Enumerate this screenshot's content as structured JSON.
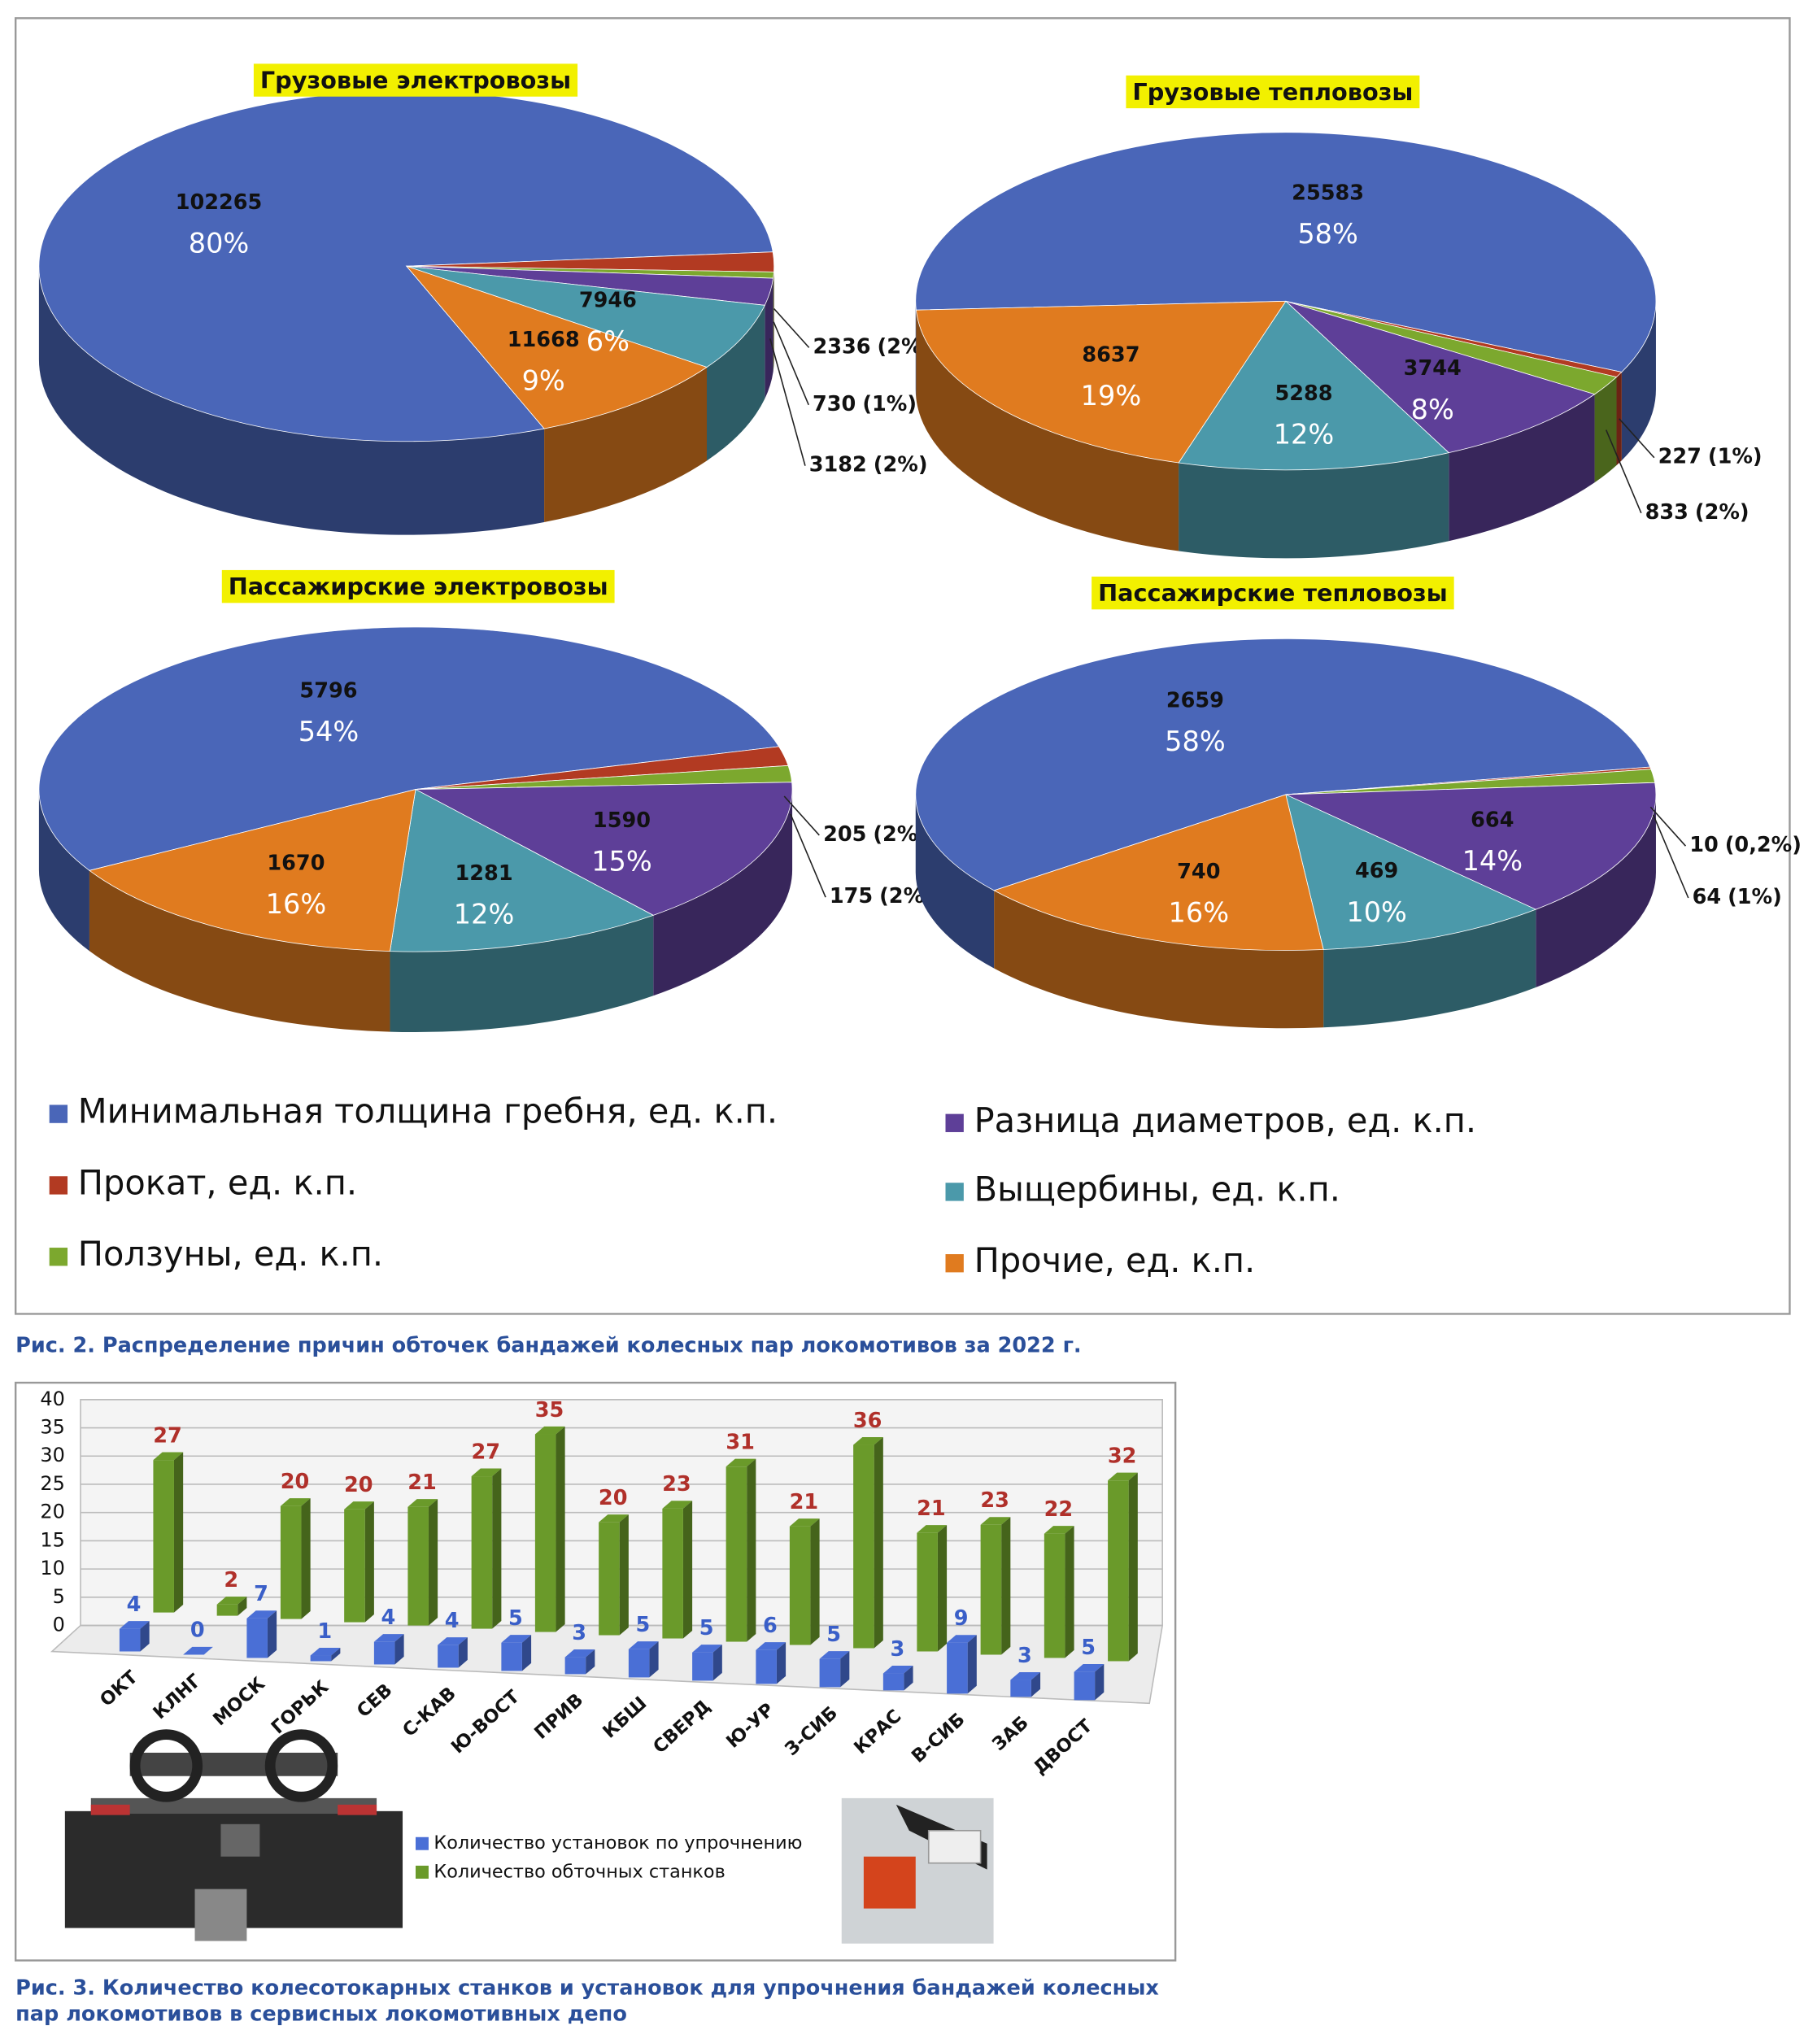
{
  "chart_data": [
    {
      "type": "pie",
      "title": "Грузовые электровозы",
      "values": [
        102265,
        2336,
        730,
        3182,
        7946,
        11668
      ],
      "percents": [
        80,
        2,
        1,
        2,
        6,
        9
      ],
      "percent_labels": [
        "80%",
        "(2%)",
        "(1%)",
        "(2%)",
        "6%",
        "9%"
      ]
    },
    {
      "type": "pie",
      "title": "Грузовые тепловозы",
      "values": [
        25583,
        227,
        833,
        3744,
        5288,
        8637
      ],
      "percents": [
        58,
        1,
        2,
        8,
        12,
        19
      ],
      "percent_labels": [
        "58%",
        "(1%)",
        "(2%)",
        "8%",
        "12%",
        "19%"
      ]
    },
    {
      "type": "pie",
      "title": "Пассажирские электровозы",
      "values": [
        5796,
        205,
        175,
        1590,
        1281,
        1670
      ],
      "percents": [
        54,
        2,
        2,
        15,
        12,
        16
      ],
      "percent_labels": [
        "54%",
        "(2%)",
        "(2%)",
        "15%",
        "12%",
        "16%"
      ]
    },
    {
      "type": "pie",
      "title": "Пассажирские тепловозы",
      "values": [
        2659,
        10,
        64,
        664,
        469,
        740
      ],
      "percents": [
        58,
        0.2,
        1,
        14,
        10,
        16
      ],
      "percent_labels": [
        "58%",
        "(0,2%)",
        "(1%)",
        "14%",
        "10%",
        "16%"
      ]
    },
    {
      "type": "bar3d",
      "categories": [
        "ОКТ",
        "КЛНГ",
        "МОСК",
        "ГОРЬК",
        "СЕВ",
        "С-КАВ",
        "Ю-ВОСТ",
        "ПРИВ",
        "КБШ",
        "СВЕРД",
        "Ю-УР",
        "З-СИБ",
        "КРАС",
        "В-СИБ",
        "ЗАБ",
        "ДВОСТ"
      ],
      "series": [
        {
          "name": "Количество установок по упрочнению",
          "color": "#4a6fd6",
          "label_color": "#3a5fc8",
          "values": [
            4,
            0,
            7,
            1,
            4,
            4,
            5,
            3,
            5,
            5,
            6,
            5,
            3,
            9,
            3,
            5
          ]
        },
        {
          "name": "Количество обточных станков",
          "color": "#6a9a2a",
          "label_color": "#b0302a",
          "values": [
            27,
            2,
            20,
            20,
            21,
            27,
            35,
            20,
            23,
            31,
            21,
            36,
            21,
            23,
            22,
            32
          ]
        }
      ],
      "ylim": [
        0,
        40
      ],
      "yticks": [
        0,
        5,
        10,
        15,
        20,
        25,
        30,
        35,
        40
      ],
      "grid": true
    }
  ],
  "pie_legend": {
    "labels": [
      "Минимальная толщина гребня, ед. к.п.",
      "Прокат, ед. к.п.",
      "Ползуны, ед. к.п.",
      "Разница диаметров, ед. к.п.",
      "Выщербины, ед. к.п.",
      "Прочие, ед. к.п."
    ],
    "colors": [
      "#4a66b8",
      "#b23a22",
      "#7ca82e",
      "#5e3f98",
      "#4b99aa",
      "#e07b1f"
    ]
  },
  "captions": [
    "Рис. 2. Распределение причин обточек бандажей колесных пар локомотивов за 2022 г.",
    "Рис. 3. Количество колесотокарных станков и установок для упрочнения бандажей колесных",
    "пар локомотивов в сервисных локомотивных депо"
  ]
}
